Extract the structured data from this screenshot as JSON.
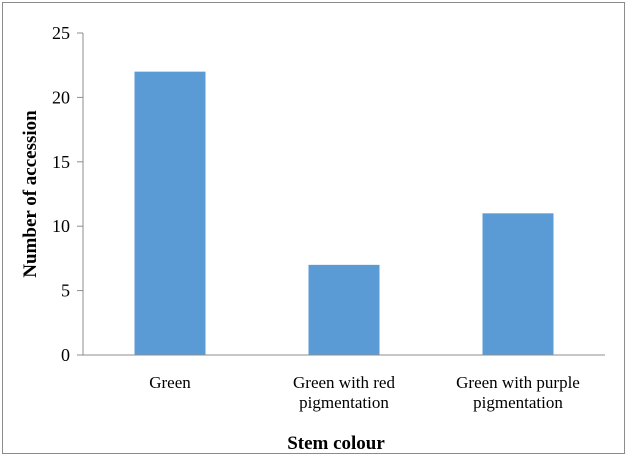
{
  "chart_data": {
    "type": "bar",
    "categories": [
      [
        "Green"
      ],
      [
        "Green with red",
        "pigmentation"
      ],
      [
        "Green with purple",
        "pigmentation"
      ]
    ],
    "values": [
      22,
      7,
      11
    ],
    "xlabel": "Stem colour",
    "ylabel": "Number of accession",
    "ylim": [
      0,
      25
    ],
    "yticks": [
      0,
      5,
      10,
      15,
      20,
      25
    ],
    "bar_color": "#5b9bd5",
    "grid": false,
    "legend": "none"
  }
}
